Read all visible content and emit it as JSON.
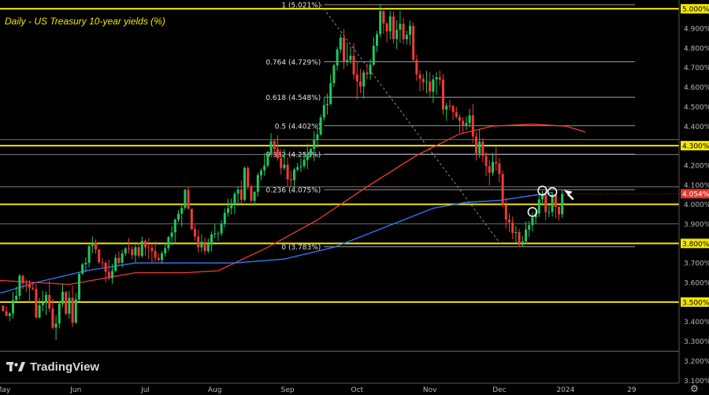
{
  "chart_data": {
    "type": "candlestick",
    "title": "Daily - US Treasury 10-year yields (%)",
    "ylim": [
      3.085,
      5.045
    ],
    "y_ticks": [
      "5.000%",
      "4.900%",
      "4.800%",
      "4.700%",
      "4.600%",
      "4.500%",
      "4.400%",
      "4.300%",
      "4.200%",
      "4.100%",
      "4.000%",
      "3.900%",
      "3.800%",
      "3.700%",
      "3.600%",
      "3.500%",
      "3.400%",
      "3.300%",
      "3.200%",
      "3.100%"
    ],
    "x_ticks": [
      "May",
      "Jun",
      "Jul",
      "Aug",
      "Sep",
      "Oct",
      "Nov",
      "Dec",
      "2024",
      "29"
    ],
    "x_tick_index": [
      0,
      22,
      43,
      64,
      86,
      107,
      129,
      150,
      170,
      190
    ],
    "last_price_label": "4.054%",
    "last_price": 4.054,
    "highlight_levels": [
      {
        "label": "5.000%",
        "value": 5.0
      },
      {
        "label": "4.300%",
        "value": 4.3
      },
      {
        "label": "3.800%",
        "value": 3.8
      },
      {
        "label": "3.500%",
        "value": 3.5
      }
    ],
    "yellow_lines": [
      5.0,
      4.3,
      4.0,
      3.8,
      3.5
    ],
    "gray_lines": [
      4.33,
      4.254,
      4.09,
      3.9,
      3.249
    ],
    "fibonacci": [
      {
        "label": "1 (5.021%)",
        "value": 5.021
      },
      {
        "label": "0.764 (4.729%)",
        "value": 4.729
      },
      {
        "label": "0.618 (4.548%)",
        "value": 4.548
      },
      {
        "label": "0.5 (4.402%)",
        "value": 4.402
      },
      {
        "label": "0.382 (4.256%)",
        "value": 4.256
      },
      {
        "label": "0.236 (4.075%)",
        "value": 4.075
      },
      {
        "label": "0 (3.783%)",
        "value": 3.783
      }
    ],
    "fib_span_index": [
      97,
      191
    ],
    "diagonal_index": [
      96,
      151
    ],
    "circled_index": [
      160,
      163,
      166
    ],
    "ma_200_red": [
      [
        -12,
        3.62
      ],
      [
        0,
        3.61
      ],
      [
        20,
        3.59
      ],
      [
        40,
        3.65
      ],
      [
        55,
        3.65
      ],
      [
        65,
        3.66
      ],
      [
        80,
        3.78
      ],
      [
        95,
        3.92
      ],
      [
        110,
        4.09
      ],
      [
        125,
        4.25
      ],
      [
        138,
        4.36
      ],
      [
        148,
        4.4
      ],
      [
        160,
        4.41
      ],
      [
        170,
        4.4
      ],
      [
        176,
        4.37
      ]
    ],
    "ma_100_blue": [
      [
        -12,
        3.52
      ],
      [
        0,
        3.55
      ],
      [
        10,
        3.6
      ],
      [
        25,
        3.66
      ],
      [
        40,
        3.7
      ],
      [
        55,
        3.7
      ],
      [
        70,
        3.7
      ],
      [
        85,
        3.72
      ],
      [
        100,
        3.78
      ],
      [
        115,
        3.88
      ],
      [
        130,
        3.98
      ],
      [
        140,
        4.01
      ],
      [
        150,
        4.02
      ],
      [
        162,
        4.05
      ],
      [
        166,
        4.06
      ]
    ],
    "candles": [
      [
        3.482,
        3.482,
        3.453,
        3.453
      ],
      [
        3.453,
        3.48,
        3.429,
        3.429
      ],
      [
        3.429,
        3.45,
        3.402,
        3.442
      ],
      [
        3.442,
        3.553,
        3.416,
        3.51
      ],
      [
        3.51,
        3.579,
        3.502,
        3.532
      ],
      [
        3.532,
        3.644,
        3.51,
        3.635
      ],
      [
        3.635,
        3.639,
        3.566,
        3.597
      ],
      [
        3.597,
        3.617,
        3.552,
        3.594
      ],
      [
        3.594,
        3.613,
        3.499,
        3.573
      ],
      [
        3.573,
        3.601,
        3.559,
        3.567
      ],
      [
        3.567,
        3.592,
        3.415,
        3.421
      ],
      [
        3.421,
        3.521,
        3.416,
        3.484
      ],
      [
        3.484,
        3.558,
        3.453,
        3.496
      ],
      [
        3.496,
        3.555,
        3.434,
        3.536
      ],
      [
        3.536,
        3.609,
        3.449,
        3.467
      ],
      [
        3.467,
        3.516,
        3.361,
        3.369
      ],
      [
        3.369,
        3.432,
        3.306,
        3.39
      ],
      [
        3.39,
        3.504,
        3.365,
        3.491
      ],
      [
        3.491,
        3.59,
        3.475,
        3.553
      ],
      [
        3.553,
        3.554,
        3.433,
        3.44
      ],
      [
        3.44,
        3.557,
        3.415,
        3.522
      ],
      [
        3.522,
        3.582,
        3.372,
        3.394
      ],
      [
        3.394,
        3.546,
        3.39,
        3.514
      ],
      [
        3.514,
        3.651,
        3.505,
        3.644
      ],
      [
        3.644,
        3.701,
        3.641,
        3.693
      ],
      [
        3.693,
        3.728,
        3.653,
        3.701
      ],
      [
        3.701,
        3.793,
        3.678,
        3.786
      ],
      [
        3.786,
        3.837,
        3.75,
        3.805
      ],
      [
        3.805,
        3.821,
        3.747,
        3.769
      ],
      [
        3.769,
        3.769,
        3.695,
        3.704
      ],
      [
        3.704,
        3.725,
        3.677,
        3.701
      ],
      [
        3.701,
        3.711,
        3.601,
        3.655
      ],
      [
        3.655,
        3.716,
        3.612,
        3.623
      ],
      [
        3.623,
        3.695,
        3.594,
        3.659
      ],
      [
        3.659,
        3.745,
        3.652,
        3.726
      ],
      [
        3.726,
        3.759,
        3.691,
        3.701
      ],
      [
        3.701,
        3.767,
        3.677,
        3.749
      ],
      [
        3.749,
        3.781,
        3.736,
        3.775
      ],
      [
        3.775,
        3.828,
        3.748,
        3.771
      ],
      [
        3.771,
        3.786,
        3.719,
        3.739
      ],
      [
        3.739,
        3.793,
        3.703,
        3.78
      ],
      [
        3.78,
        3.805,
        3.725,
        3.736
      ],
      [
        3.736,
        3.834,
        3.729,
        3.813
      ],
      [
        3.813,
        3.821,
        3.735,
        3.78
      ],
      [
        3.78,
        3.828,
        3.72,
        3.778
      ],
      [
        3.778,
        3.793,
        3.699,
        3.761
      ],
      [
        3.761,
        3.812,
        3.706,
        3.726
      ],
      [
        3.726,
        3.749,
        3.708,
        3.715
      ],
      [
        3.715,
        3.761,
        3.696,
        3.749
      ],
      [
        3.749,
        3.804,
        3.733,
        3.776
      ],
      [
        3.776,
        3.838,
        3.762,
        3.833
      ],
      [
        3.833,
        3.889,
        3.79,
        3.856
      ],
      [
        3.856,
        3.927,
        3.799,
        3.922
      ],
      [
        3.922,
        3.97,
        3.909,
        3.952
      ],
      [
        3.952,
        4.001,
        3.885,
        3.982
      ],
      [
        3.982,
        4.079,
        3.971,
        4.074
      ],
      [
        4.074,
        4.088,
        3.973,
        3.977
      ],
      [
        3.977,
        3.979,
        3.868,
        3.873
      ],
      [
        3.873,
        3.897,
        3.815,
        3.835
      ],
      [
        3.835,
        3.872,
        3.752,
        3.779
      ],
      [
        3.779,
        3.847,
        3.756,
        3.808
      ],
      [
        3.808,
        3.831,
        3.743,
        3.761
      ],
      [
        3.761,
        3.825,
        3.75,
        3.794
      ],
      [
        3.794,
        3.863,
        3.758,
        3.846
      ],
      [
        3.846,
        3.902,
        3.827,
        3.851
      ],
      [
        3.851,
        3.863,
        3.813,
        3.851
      ],
      [
        3.851,
        3.919,
        3.837,
        3.9
      ],
      [
        3.9,
        3.979,
        3.882,
        3.957
      ],
      [
        3.957,
        4.029,
        3.937,
        3.98
      ],
      [
        3.98,
        4.03,
        3.948,
        4.006
      ],
      [
        4.006,
        4.066,
        3.951,
        4.054
      ],
      [
        4.054,
        4.093,
        3.992,
        4.076
      ],
      [
        4.076,
        4.121,
        4.004,
        4.023
      ],
      [
        4.023,
        4.194,
        4.014,
        4.186
      ],
      [
        4.186,
        4.194,
        4.074,
        4.092
      ],
      [
        4.092,
        4.101,
        4.009,
        4.018
      ],
      [
        4.018,
        4.071,
        3.992,
        4.063
      ],
      [
        4.063,
        4.162,
        4.039,
        4.149
      ],
      [
        4.149,
        4.183,
        4.122,
        4.173
      ],
      [
        4.173,
        4.262,
        4.146,
        4.198
      ],
      [
        4.198,
        4.273,
        4.187,
        4.257
      ],
      [
        4.257,
        4.364,
        4.25,
        4.323
      ],
      [
        4.323,
        4.334,
        4.25,
        4.283
      ],
      [
        4.283,
        4.353,
        4.223,
        4.236
      ],
      [
        4.236,
        4.282,
        4.152,
        4.185
      ],
      [
        4.185,
        4.283,
        4.175,
        4.203
      ],
      [
        4.203,
        4.239,
        4.09,
        4.128
      ],
      [
        4.128,
        4.172,
        4.09,
        4.123
      ],
      [
        4.123,
        4.188,
        4.086,
        4.177
      ],
      [
        4.177,
        4.212,
        4.168,
        4.19
      ],
      [
        4.19,
        4.234,
        4.166,
        4.195
      ],
      [
        4.195,
        4.267,
        4.183,
        4.227
      ],
      [
        4.227,
        4.311,
        4.18,
        4.247
      ],
      [
        4.247,
        4.288,
        4.238,
        4.283
      ],
      [
        4.283,
        4.375,
        4.221,
        4.33
      ],
      [
        4.33,
        4.411,
        4.289,
        4.357
      ],
      [
        4.357,
        4.46,
        4.35,
        4.444
      ],
      [
        4.444,
        4.548,
        4.427,
        4.508
      ],
      [
        4.508,
        4.566,
        4.46,
        4.514
      ],
      [
        4.514,
        4.666,
        4.506,
        4.62
      ],
      [
        4.62,
        4.72,
        4.599,
        4.71
      ],
      [
        4.71,
        4.805,
        4.684,
        4.792
      ],
      [
        4.792,
        4.87,
        4.775,
        4.852
      ],
      [
        4.852,
        4.896,
        4.692,
        4.731
      ],
      [
        4.731,
        4.829,
        4.708,
        4.738
      ],
      [
        4.738,
        4.806,
        4.717,
        4.76
      ],
      [
        4.76,
        4.823,
        4.639,
        4.664
      ],
      [
        4.664,
        4.734,
        4.535,
        4.628
      ],
      [
        4.628,
        4.693,
        4.57,
        4.602
      ],
      [
        4.602,
        4.687,
        4.54,
        4.674
      ],
      [
        4.674,
        4.72,
        4.639,
        4.665
      ],
      [
        4.665,
        4.742,
        4.636,
        4.714
      ],
      [
        4.714,
        4.856,
        4.706,
        4.811
      ],
      [
        4.811,
        4.888,
        4.778,
        4.87
      ],
      [
        4.87,
        5.021,
        4.854,
        4.988
      ],
      [
        4.988,
        5.002,
        4.873,
        4.925
      ],
      [
        4.925,
        4.931,
        4.828,
        4.885
      ],
      [
        4.885,
        4.989,
        4.844,
        4.961
      ],
      [
        4.961,
        4.986,
        4.822,
        4.845
      ],
      [
        4.845,
        4.942,
        4.793,
        4.893
      ],
      [
        4.893,
        4.99,
        4.826,
        4.923
      ],
      [
        4.923,
        4.953,
        4.82,
        4.844
      ],
      [
        4.844,
        4.888,
        4.818,
        4.867
      ],
      [
        4.867,
        4.94,
        4.814,
        4.913
      ],
      [
        4.913,
        4.931,
        4.728,
        4.739
      ],
      [
        4.739,
        4.765,
        4.632,
        4.664
      ],
      [
        4.664,
        4.685,
        4.578,
        4.642
      ],
      [
        4.642,
        4.665,
        4.581,
        4.625
      ],
      [
        4.625,
        4.683,
        4.567,
        4.628
      ],
      [
        4.628,
        4.675,
        4.547,
        4.576
      ],
      [
        4.576,
        4.662,
        4.519,
        4.639
      ],
      [
        4.639,
        4.676,
        4.56,
        4.65
      ],
      [
        4.65,
        4.684,
        4.607,
        4.637
      ],
      [
        4.637,
        4.666,
        4.458,
        4.485
      ],
      [
        4.485,
        4.519,
        4.427,
        4.504
      ],
      [
        4.504,
        4.534,
        4.482,
        4.503
      ],
      [
        4.503,
        4.509,
        4.431,
        4.472
      ],
      [
        4.472,
        4.499,
        4.44,
        4.446
      ],
      [
        4.446,
        4.46,
        4.366,
        4.427
      ],
      [
        4.427,
        4.445,
        4.363,
        4.402
      ],
      [
        4.402,
        4.45,
        4.38,
        4.415
      ],
      [
        4.415,
        4.489,
        4.392,
        4.455
      ],
      [
        4.455,
        4.513,
        4.311,
        4.347
      ],
      [
        4.347,
        4.369,
        4.224,
        4.261
      ],
      [
        4.261,
        4.385,
        4.236,
        4.321
      ],
      [
        4.321,
        4.34,
        4.215,
        4.247
      ],
      [
        4.247,
        4.268,
        4.143,
        4.195
      ],
      [
        4.195,
        4.225,
        4.097,
        4.162
      ],
      [
        4.162,
        4.262,
        4.146,
        4.217
      ],
      [
        4.217,
        4.293,
        4.172,
        4.209
      ],
      [
        4.209,
        4.236,
        4.112,
        4.155
      ],
      [
        4.155,
        4.174,
        3.984,
        3.995
      ],
      [
        3.995,
        4.034,
        3.876,
        3.922
      ],
      [
        3.922,
        3.954,
        3.858,
        3.908
      ],
      [
        3.908,
        3.937,
        3.821,
        3.853
      ],
      [
        3.853,
        3.889,
        3.801,
        3.858
      ],
      [
        3.858,
        3.875,
        3.781,
        3.792
      ],
      [
        3.792,
        3.838,
        3.783,
        3.81
      ],
      [
        3.81,
        3.912,
        3.798,
        3.871
      ],
      [
        3.871,
        3.915,
        3.834,
        3.893
      ],
      [
        3.893,
        3.961,
        3.861,
        3.933
      ],
      [
        3.933,
        3.967,
        3.9,
        3.953
      ],
      [
        3.953,
        4.057,
        3.935,
        4.025
      ],
      [
        4.025,
        4.07,
        3.992,
        4.049
      ],
      [
        4.049,
        4.072,
        3.919,
        3.96
      ],
      [
        3.96,
        3.994,
        3.933,
        3.961
      ],
      [
        3.961,
        4.063,
        3.937,
        4.051
      ],
      [
        4.051,
        4.055,
        3.928,
        3.987
      ],
      [
        3.987,
        3.99,
        3.917,
        3.949
      ],
      [
        3.949,
        4.073,
        3.932,
        4.054
      ]
    ]
  }
}
